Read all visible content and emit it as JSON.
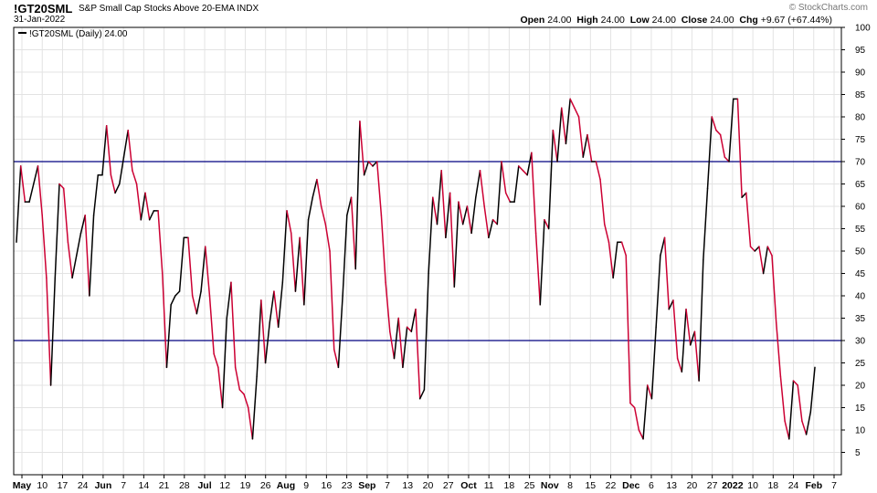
{
  "header": {
    "symbol": "!GT20SML",
    "description": "S&P Small Cap Stocks Above 20-EMA",
    "exchange": "INDX",
    "date": "31-Jan-2022",
    "watermark": "© StockCharts.com",
    "ohlc": {
      "open_label": "Open",
      "open": "24.00",
      "high_label": "High",
      "high": "24.00",
      "low_label": "Low",
      "low": "24.00",
      "close_label": "Close",
      "close": "24.00",
      "chg_label": "Chg",
      "chg": "+9.67 (+67.44%)"
    }
  },
  "legend": {
    "label": "!GT20SML (Daily) 24.00"
  },
  "colors": {
    "up": "#000000",
    "down": "#cc0033",
    "reference": "#000080",
    "grid": "#e3e3e3"
  },
  "chart_data": {
    "type": "line",
    "series": [
      {
        "name": "!GT20SML (Daily)",
        "values": [
          52,
          69,
          61,
          61,
          65,
          69,
          58,
          44,
          20,
          44,
          65,
          64,
          52,
          44,
          49,
          54,
          58,
          40,
          58,
          67,
          67,
          78,
          67,
          63,
          65,
          71,
          77,
          68,
          65,
          57,
          63,
          57,
          59,
          59,
          45,
          24,
          38,
          40,
          41,
          53,
          53,
          40,
          36,
          41,
          51,
          40,
          27,
          24,
          15,
          35,
          43,
          24,
          19,
          18,
          15,
          8,
          22,
          39,
          25,
          34,
          41,
          33,
          43,
          59,
          54,
          41,
          53,
          38,
          57,
          62,
          66,
          60,
          56,
          50,
          28,
          24,
          40,
          58,
          62,
          46,
          79,
          67,
          70,
          69,
          70,
          58,
          43,
          32,
          26,
          35,
          24,
          33,
          32,
          37,
          17,
          19,
          45,
          62,
          56,
          68,
          53,
          63,
          42,
          61,
          56,
          60,
          54,
          62,
          68,
          60,
          53,
          57,
          56,
          70,
          63,
          61,
          61,
          69,
          68,
          67,
          72,
          54,
          38,
          57,
          55,
          77,
          70,
          82,
          74,
          84,
          82,
          80,
          71,
          76,
          70,
          70,
          66,
          56,
          52,
          44,
          52,
          52,
          49,
          16,
          15,
          10,
          8,
          20,
          17,
          33,
          49,
          53,
          37,
          39,
          26,
          23,
          37,
          29,
          32,
          21,
          48,
          64,
          80,
          77,
          76,
          71,
          70,
          84,
          84,
          62,
          63,
          51,
          50,
          51,
          45,
          51,
          49,
          34,
          22,
          12,
          8,
          21,
          20,
          12,
          9,
          14,
          24
        ],
        "color_rule": "line drawn dark red on declining segments, black on rising segments"
      }
    ],
    "x_tick_labels": [
      "May",
      "10",
      "17",
      "24",
      "Jun",
      "7",
      "14",
      "21",
      "28",
      "Jul",
      "12",
      "19",
      "26",
      "Aug",
      "9",
      "16",
      "23",
      "Sep",
      "7",
      "13",
      "20",
      "27",
      "Oct",
      "11",
      "18",
      "25",
      "Nov",
      "8",
      "15",
      "22",
      "Dec",
      "6",
      "13",
      "20",
      "27",
      "2022",
      "10",
      "18",
      "24",
      "Feb",
      "7"
    ],
    "bold_tick_labels": [
      "May",
      "Jun",
      "Jul",
      "Aug",
      "Sep",
      "Oct",
      "Nov",
      "Dec",
      "2022",
      "Feb"
    ],
    "y_tick_labels": [
      "5",
      "10",
      "15",
      "20",
      "25",
      "30",
      "35",
      "40",
      "45",
      "50",
      "55",
      "60",
      "65",
      "70",
      "75",
      "80",
      "85",
      "90",
      "95",
      "100"
    ],
    "reference_lines": [
      30,
      70
    ],
    "ylim": [
      0,
      100
    ],
    "axis_side": "right",
    "grid": true,
    "legend_position": "top-left"
  }
}
